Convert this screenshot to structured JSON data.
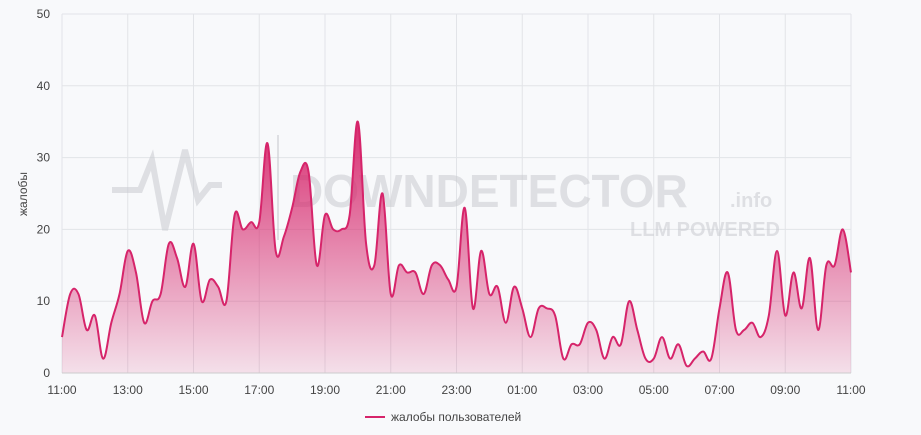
{
  "chart_data": {
    "type": "area",
    "y_label": "жалобы",
    "watermark": {
      "text": "DOWNDETECTOR",
      "suffix": ".info",
      "tagline": "LLM POWERED"
    },
    "categories": [
      "11:00",
      null,
      null,
      null,
      null,
      null,
      null,
      null,
      "13:00",
      null,
      null,
      null,
      null,
      null,
      null,
      null,
      "15:00",
      null,
      null,
      null,
      null,
      null,
      null,
      null,
      "17:00",
      null,
      null,
      null,
      null,
      null,
      null,
      null,
      "19:00",
      null,
      null,
      null,
      null,
      null,
      null,
      null,
      "21:00",
      null,
      null,
      null,
      null,
      null,
      null,
      null,
      "23:00",
      null,
      null,
      null,
      null,
      null,
      null,
      null,
      "01:00",
      null,
      null,
      null,
      null,
      null,
      null,
      null,
      "03:00",
      null,
      null,
      null,
      null,
      null,
      null,
      null,
      "05:00",
      null,
      null,
      null,
      null,
      null,
      null,
      null,
      "07:00",
      null,
      null,
      null,
      null,
      null,
      null,
      null,
      "09:00",
      null,
      null,
      null,
      null,
      null,
      null,
      null,
      "11:00"
    ],
    "series": [
      {
        "name": "жалобы пользователей",
        "color": "#d6246a",
        "values": [
          5,
          11,
          11,
          6,
          8,
          2,
          7,
          11,
          17,
          14,
          7,
          10,
          11,
          18,
          16,
          12,
          18,
          10,
          13,
          12,
          10,
          22,
          20,
          21,
          21,
          32,
          17,
          19,
          23,
          28,
          28,
          15,
          22,
          20,
          20,
          22,
          35,
          18,
          15,
          25,
          11,
          15,
          14,
          14,
          11,
          15,
          15,
          13,
          12,
          23,
          9,
          17,
          11,
          12,
          7,
          12,
          9,
          5,
          9,
          9,
          8,
          2,
          4,
          4,
          7,
          6,
          2,
          5,
          4,
          10,
          6,
          2,
          2,
          5,
          2,
          4,
          1,
          2,
          3,
          2,
          9,
          14,
          6,
          6,
          7,
          5,
          8,
          17,
          8,
          14,
          9,
          16,
          6,
          15,
          15,
          20,
          14
        ]
      }
    ],
    "ylim": [
      0,
      50
    ],
    "yticks": [
      0,
      10,
      20,
      30,
      40,
      50
    ],
    "grid": true,
    "legend": "bottom"
  }
}
